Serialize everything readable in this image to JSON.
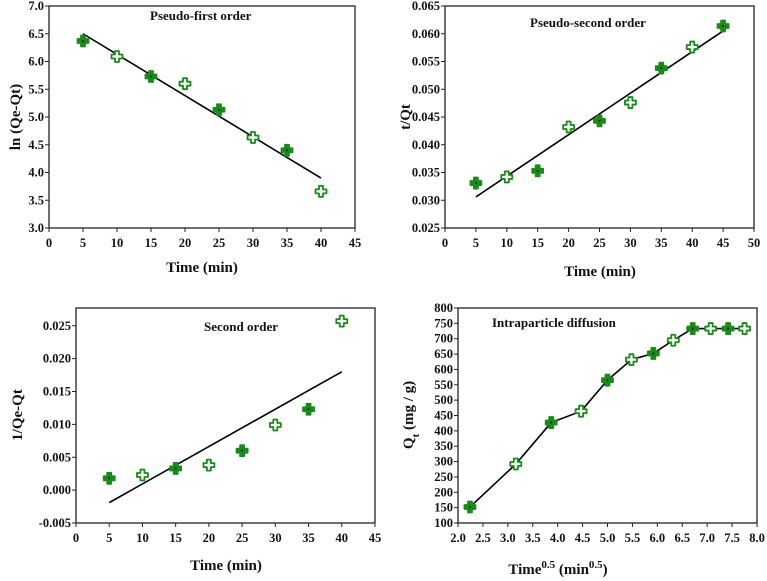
{
  "colors": {
    "marker_fill": "#1a8a1a",
    "marker_hollow": "#ffffff",
    "line": "#000000"
  },
  "chart_data": [
    {
      "type": "scatter",
      "title": "Pseudo-first order",
      "xlabel": "Time (min)",
      "ylabel": "ln (Qe-Qt)",
      "xlim": [
        0,
        45
      ],
      "ylim": [
        3.0,
        7.0
      ],
      "xticks": [
        "0",
        "5",
        "10",
        "15",
        "20",
        "25",
        "30",
        "35",
        "40",
        "45"
      ],
      "yticks": [
        "3.0",
        "3.5",
        "4.0",
        "4.5",
        "5.0",
        "5.5",
        "6.0",
        "6.5",
        "7.0"
      ],
      "x": [
        5,
        10,
        15,
        20,
        25,
        30,
        35,
        40
      ],
      "y": [
        6.37,
        6.09,
        5.73,
        5.6,
        5.13,
        4.63,
        4.4,
        3.66
      ],
      "fit": {
        "x": [
          5,
          40
        ],
        "y": [
          6.5,
          3.9
        ]
      },
      "connect": false
    },
    {
      "type": "scatter",
      "title": "Pseudo-second order",
      "xlabel": "Time (min)",
      "ylabel": "t/Qt",
      "xlim": [
        0,
        50
      ],
      "ylim": [
        0.025,
        0.065
      ],
      "xticks": [
        "0",
        "5",
        "10",
        "15",
        "20",
        "25",
        "30",
        "35",
        "40",
        "45",
        "50"
      ],
      "yticks": [
        "0.025",
        "0.030",
        "0.035",
        "0.040",
        "0.045",
        "0.050",
        "0.055",
        "0.060",
        "0.065"
      ],
      "x": [
        5,
        10,
        15,
        20,
        25,
        30,
        35,
        40,
        45
      ],
      "y": [
        0.0331,
        0.0342,
        0.0353,
        0.0432,
        0.0443,
        0.0476,
        0.0538,
        0.0576,
        0.0614
      ],
      "fit": {
        "x": [
          5,
          45
        ],
        "y": [
          0.0306,
          0.0605
        ]
      },
      "connect": false
    },
    {
      "type": "scatter",
      "title": "Second order",
      "xlabel": "Time (min)",
      "ylabel": "1/Qe-Qt",
      "xlim": [
        0,
        45
      ],
      "ylim": [
        -0.005,
        0.0277
      ],
      "xticks": [
        "0",
        "5",
        "10",
        "15",
        "20",
        "25",
        "30",
        "35",
        "40",
        "45"
      ],
      "yticks": [
        "-0.005",
        "0.000",
        "0.005",
        "0.010",
        "0.015",
        "0.020",
        "0.025"
      ],
      "x": [
        5,
        10,
        15,
        20,
        25,
        30,
        35,
        40
      ],
      "y": [
        0.0018,
        0.0023,
        0.0033,
        0.0038,
        0.006,
        0.0099,
        0.0123,
        0.0257
      ],
      "fit": {
        "x": [
          5,
          40
        ],
        "y": [
          -0.0019,
          0.018
        ]
      },
      "connect": false
    },
    {
      "type": "line",
      "title": "Intraparticle diffusion",
      "xlabel": "Time0.5 (min0.5)",
      "xlabel_parts": [
        "Time",
        "0.5",
        " (min",
        "0.5",
        ")"
      ],
      "ylabel": "Qt (mg / g)",
      "ylabel_parts": [
        "Q",
        "t",
        " (mg / g)"
      ],
      "xlim": [
        2.0,
        8.0
      ],
      "ylim": [
        100,
        800
      ],
      "xticks": [
        "2.0",
        "2.5",
        "3.0",
        "3.5",
        "4.0",
        "4.5",
        "5.0",
        "5.5",
        "6.0",
        "6.5",
        "7.0",
        "7.5",
        "8.0"
      ],
      "yticks": [
        "100",
        "150",
        "200",
        "250",
        "300",
        "350",
        "400",
        "450",
        "500",
        "550",
        "600",
        "650",
        "700",
        "750",
        "800"
      ],
      "x": [
        2.24,
        3.16,
        3.87,
        4.47,
        5.0,
        5.48,
        5.92,
        6.32,
        6.71,
        7.07,
        7.42,
        7.75
      ],
      "y": [
        152,
        292,
        427,
        464,
        565,
        632,
        652,
        695,
        733,
        733,
        733,
        733
      ],
      "connect": true
    }
  ]
}
